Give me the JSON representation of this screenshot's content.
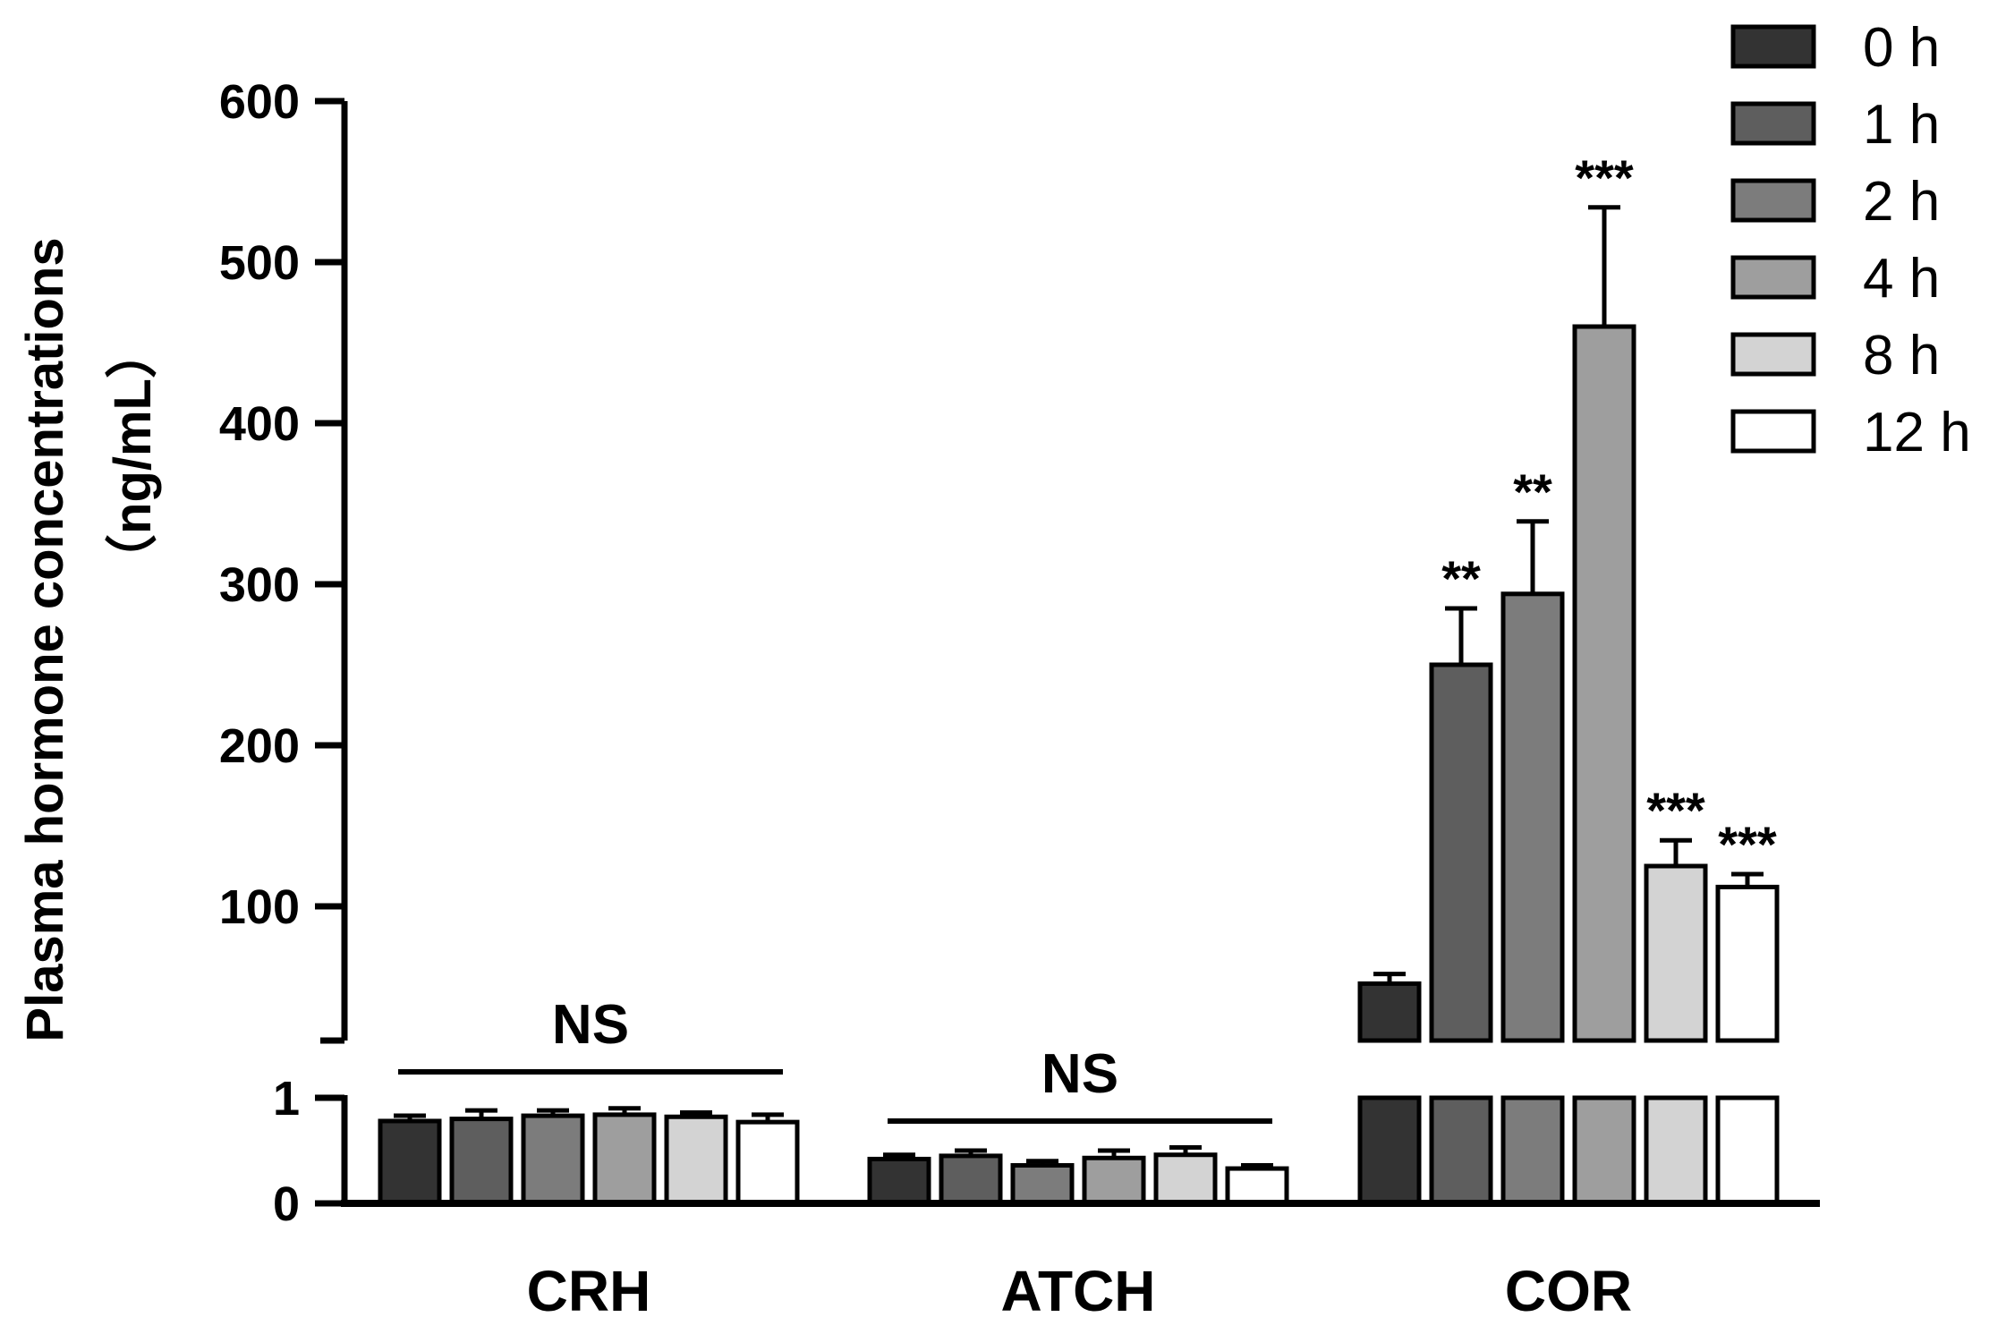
{
  "chart_data": {
    "type": "bar",
    "categories": [
      "CRH",
      "ATCH",
      "COR"
    ],
    "ylabel": "Plasma hormone concentrations",
    "ylabel_unit": "（ng/mL）",
    "axis_break": true,
    "lower_segment": {
      "ylim": [
        0,
        1
      ],
      "ticks": [
        "0",
        "1"
      ]
    },
    "upper_segment": {
      "ylim": [
        20,
        600
      ],
      "ticks": [
        "100",
        "200",
        "300",
        "400",
        "500",
        "600"
      ]
    },
    "legend_position": "top-right",
    "series": [
      {
        "name": "0 h",
        "color": "#333333",
        "values": [
          0.78,
          0.42,
          52
        ],
        "errors": [
          0.05,
          0.04,
          6
        ]
      },
      {
        "name": "1 h",
        "color": "#5e5e5e",
        "values": [
          0.8,
          0.45,
          250
        ],
        "errors": [
          0.08,
          0.05,
          35
        ]
      },
      {
        "name": "2 h",
        "color": "#7c7c7c",
        "values": [
          0.83,
          0.36,
          294
        ],
        "errors": [
          0.05,
          0.04,
          45
        ]
      },
      {
        "name": "4 h",
        "color": "#9e9e9e",
        "values": [
          0.84,
          0.43,
          460
        ],
        "errors": [
          0.06,
          0.07,
          74
        ]
      },
      {
        "name": "8 h",
        "color": "#d3d3d3",
        "values": [
          0.82,
          0.46,
          125
        ],
        "errors": [
          0.04,
          0.07,
          16
        ]
      },
      {
        "name": "12 h",
        "color": "#ffffff",
        "values": [
          0.77,
          0.33,
          112
        ],
        "errors": [
          0.07,
          0.03,
          8
        ]
      }
    ],
    "annotations": {
      "CRH": {
        "group_label": "NS"
      },
      "ATCH": {
        "group_label": "NS"
      },
      "COR": {
        "bar_labels": [
          "",
          "**",
          "**",
          "***",
          "***",
          "***"
        ]
      }
    }
  }
}
